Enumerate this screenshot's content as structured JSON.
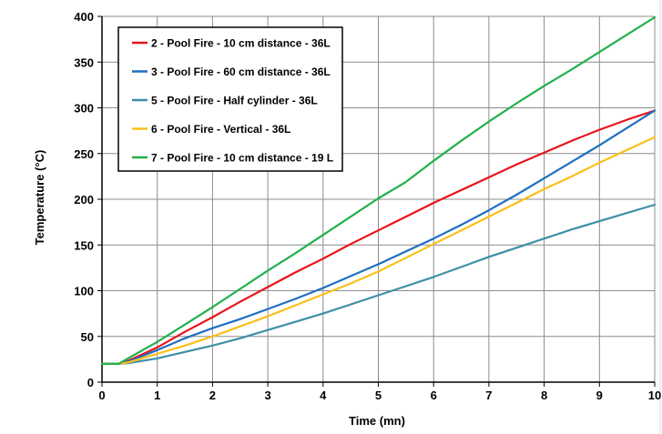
{
  "chart_data": {
    "type": "line",
    "title": "",
    "xlabel": "Time (mn)",
    "ylabel": "Temperature (°C)",
    "xlim": [
      0,
      10
    ],
    "ylim": [
      0,
      400
    ],
    "xticks": [
      0,
      1,
      2,
      3,
      4,
      5,
      6,
      7,
      8,
      9,
      10
    ],
    "yticks": [
      0,
      50,
      100,
      150,
      200,
      250,
      300,
      350,
      400
    ],
    "grid": true,
    "legend_position": "top-left",
    "series": [
      {
        "name": "2 - Pool Fire - 10 cm distance - 36L",
        "color": "#e8141c",
        "x": [
          0,
          0.3,
          0.5,
          1,
          1.5,
          2,
          2.5,
          3,
          3.5,
          4,
          4.5,
          5,
          5.5,
          6,
          6.5,
          7,
          7.5,
          8,
          8.5,
          9,
          9.5,
          10
        ],
        "y": [
          20,
          20,
          24,
          38,
          55,
          71,
          88,
          104,
          120,
          135,
          151,
          166,
          181,
          196,
          210,
          224,
          238,
          251,
          264,
          276,
          287,
          297
        ]
      },
      {
        "name": "3 - Pool Fire - 60 cm distance - 36L",
        "color": "#1f6fc0",
        "x": [
          0,
          0.3,
          0.5,
          1,
          1.5,
          2,
          2.5,
          3,
          3.5,
          4,
          4.5,
          5,
          5.5,
          6,
          6.5,
          7,
          7.5,
          8,
          8.5,
          9,
          9.5,
          10
        ],
        "y": [
          20,
          20,
          23,
          35,
          48,
          59,
          69,
          80,
          91,
          103,
          116,
          129,
          143,
          157,
          172,
          188,
          205,
          223,
          241,
          259,
          278,
          297
        ]
      },
      {
        "name": "5 - Pool Fire - Half cylinder - 36L",
        "color": "#3f8fa6",
        "x": [
          0,
          0.3,
          0.5,
          1,
          1.5,
          2,
          2.5,
          3,
          3.5,
          4,
          4.5,
          5,
          5.5,
          6,
          6.5,
          7,
          7.5,
          8,
          8.5,
          9,
          9.5,
          10
        ],
        "y": [
          20,
          20,
          21,
          26,
          33,
          40,
          48,
          57,
          66,
          75,
          85,
          95,
          105,
          115,
          126,
          137,
          147,
          157,
          167,
          176,
          185,
          194
        ]
      },
      {
        "name": "6 - Pool Fire - Vertical - 36L",
        "color": "#fbbf1a",
        "x": [
          0,
          0.3,
          0.5,
          1,
          1.5,
          2,
          2.5,
          3,
          3.5,
          4,
          4.5,
          5,
          5.5,
          6,
          6.5,
          7,
          7.5,
          8,
          8.5,
          9,
          9.5,
          10
        ],
        "y": [
          20,
          20,
          22,
          31,
          40,
          50,
          61,
          72,
          84,
          96,
          108,
          121,
          136,
          151,
          166,
          181,
          196,
          211,
          225,
          240,
          254,
          268
        ]
      },
      {
        "name": "7 - Pool Fire - 10 cm distance - 19 L",
        "color": "#22b04c",
        "x": [
          0,
          0.3,
          0.5,
          1,
          1.5,
          2,
          2.5,
          3,
          3.5,
          4,
          4.5,
          5,
          5.5,
          6,
          6.5,
          7,
          7.5,
          8,
          8.5,
          9,
          9.5,
          10
        ],
        "y": [
          20,
          20,
          27,
          44,
          63,
          82,
          102,
          122,
          141,
          161,
          181,
          201,
          219,
          242,
          264,
          285,
          305,
          324,
          342,
          361,
          380,
          399
        ]
      }
    ]
  }
}
